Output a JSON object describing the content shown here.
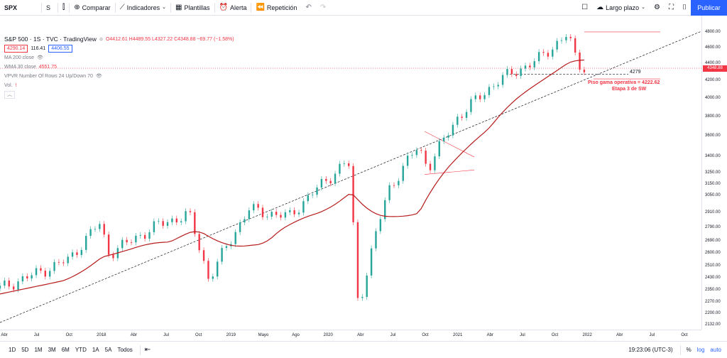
{
  "toolbar": {
    "symbol": "SPX",
    "interval": "S",
    "compare": "Comparar",
    "indicators": "Indicadores",
    "templates": "Plantillas",
    "alert": "Alerta",
    "replay": "Repetición",
    "layout": "Largo plazo",
    "publish": "Publicar"
  },
  "legend": {
    "title": "S&P 500 · 1S · TVC · TradingView",
    "ohlc": "O4412.61  H4489.55  L4327.22  C4348.88  −69.77 (−1.58%)",
    "bid": "4290.14",
    "spread": "116.41",
    "ask": "4406.55",
    "ma": "MA 200 close",
    "wma": "WMA 30 close",
    "wma_value": "4551.75",
    "vpvr": "VPVR Number Of Rows 24 Up/Down 70",
    "vol": "Vol."
  },
  "annotations": {
    "level": "4279",
    "floor": "Piso gama operativa = 4222.62",
    "stage": "Etapa 3 de SW"
  },
  "price_axis": {
    "labels": [
      "4800.00",
      "4600.00",
      "4400.00",
      "4200.00",
      "4000.00",
      "3800.00",
      "3600.00",
      "3400.00",
      "3250.00",
      "3150.00",
      "3050.00",
      "2910.00",
      "2790.00",
      "2690.00",
      "2600.00",
      "2510.00",
      "2430.00",
      "2350.00",
      "2270.00",
      "2200.00",
      "2132.00"
    ],
    "current": "4348.88"
  },
  "time_axis": {
    "labels": [
      "Abr",
      "Jul",
      "Oct",
      "2018",
      "Abr",
      "Jul",
      "Oct",
      "2019",
      "Mayo",
      "Ago",
      "2020",
      "Abr",
      "Jul",
      "Oct",
      "2021",
      "Abr",
      "Jul",
      "Oct",
      "2022",
      "Abr",
      "Jul",
      "Oct"
    ]
  },
  "bottom": {
    "ranges": [
      "1D",
      "5D",
      "1M",
      "3M",
      "6M",
      "YTD",
      "1A",
      "5A",
      "Todos"
    ],
    "time": "19:23:06 (UTC-3)",
    "percent": "%",
    "log": "log",
    "auto": "auto"
  },
  "chart_data": {
    "type": "candlestick",
    "symbol": "S&P 500",
    "interval": "1S",
    "yscale": "log",
    "ylim": [
      2132,
      4850
    ],
    "ohlc_last": {
      "open": 4412.61,
      "high": 4489.55,
      "low": 4327.22,
      "close": 4348.88
    },
    "wma30_last": 4551.75,
    "support_level": 4279,
    "floor_level": 4222.62,
    "series_approx": [
      {
        "date": "2017-03",
        "close": 2360
      },
      {
        "date": "2017-07",
        "close": 2470
      },
      {
        "date": "2017-10",
        "close": 2560
      },
      {
        "date": "2018-01",
        "close": 2830
      },
      {
        "date": "2018-02",
        "close": 2600
      },
      {
        "date": "2018-07",
        "close": 2820
      },
      {
        "date": "2018-10",
        "close": 2900
      },
      {
        "date": "2018-12",
        "close": 2420
      },
      {
        "date": "2019-04",
        "close": 2940
      },
      {
        "date": "2019-08",
        "close": 2880
      },
      {
        "date": "2020-02",
        "close": 3370
      },
      {
        "date": "2020-03",
        "close": 2230
      },
      {
        "date": "2020-06",
        "close": 3100
      },
      {
        "date": "2020-09",
        "close": 3500
      },
      {
        "date": "2020-10",
        "close": 3300
      },
      {
        "date": "2021-01",
        "close": 3800
      },
      {
        "date": "2021-05",
        "close": 4200
      },
      {
        "date": "2021-09",
        "close": 4450
      },
      {
        "date": "2021-12",
        "close": 4780
      },
      {
        "date": "2022-01",
        "close": 4400
      },
      {
        "date": "2022-02",
        "close": 4348.88
      }
    ]
  }
}
